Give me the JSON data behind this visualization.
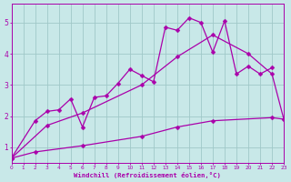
{
  "xlabel": "Windchill (Refroidissement éolien,°C)",
  "bg_color": "#c8e8e8",
  "grid_color": "#b8d8d8",
  "line_color": "#aa00aa",
  "xlim": [
    0,
    23
  ],
  "ylim": [
    0.5,
    5.6
  ],
  "yticks": [
    1,
    2,
    3,
    4,
    5
  ],
  "xticks": [
    0,
    1,
    2,
    3,
    4,
    5,
    6,
    7,
    8,
    9,
    10,
    11,
    12,
    13,
    14,
    15,
    16,
    17,
    18,
    19,
    20,
    21,
    22,
    23
  ],
  "line1_x": [
    0,
    2,
    3,
    4,
    5,
    6,
    7,
    8,
    9,
    10,
    11,
    12,
    13,
    14,
    15,
    16,
    17,
    18,
    19,
    20,
    21,
    22
  ],
  "line1_y": [
    0.65,
    1.85,
    2.15,
    2.2,
    2.55,
    1.65,
    2.6,
    2.65,
    3.05,
    3.5,
    3.3,
    3.1,
    4.85,
    4.75,
    5.15,
    5.0,
    4.05,
    5.05,
    3.35,
    3.6,
    3.35,
    3.55
  ],
  "line2_x": [
    0,
    3,
    6,
    11,
    14,
    17,
    20,
    22,
    23
  ],
  "line2_y": [
    0.65,
    1.7,
    2.1,
    3.0,
    3.9,
    4.6,
    4.0,
    3.35,
    1.9
  ],
  "line3_x": [
    0,
    2,
    6,
    11,
    14,
    17,
    22,
    23
  ],
  "line3_y": [
    0.65,
    0.85,
    1.05,
    1.35,
    1.65,
    1.85,
    1.95,
    1.9
  ],
  "markersize": 2.5,
  "linewidth": 0.9
}
